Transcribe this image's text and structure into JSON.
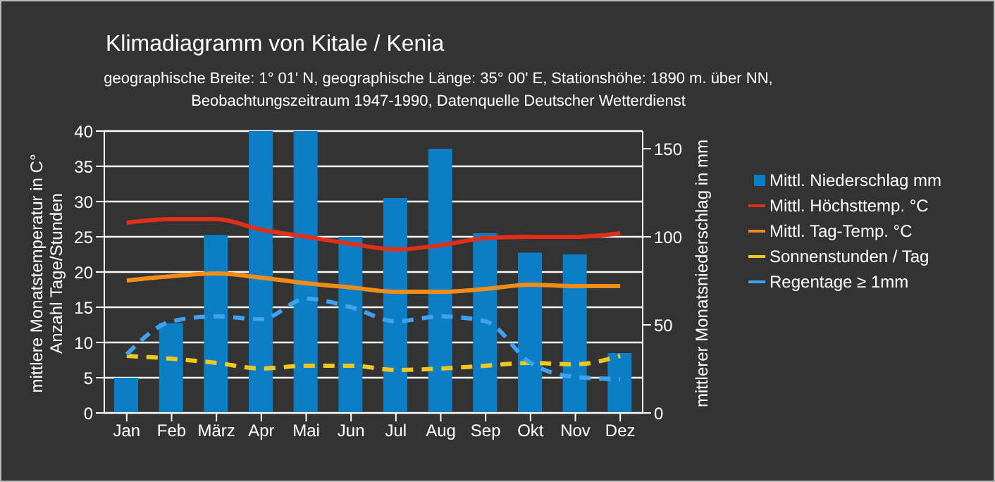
{
  "chart_data": {
    "type": "bar",
    "title": "Klimadiagramm von Kitale / Kenia",
    "subtitle": "geographische Breite: 1° 01' N, geographische Länge: 35° 00' E, Stationshöhe: 1890 m. über NN,\nBeobachtungszeitraum 1947-1990, Datenquelle Deutscher Wetterdienst",
    "ylabel": "mittlere Monatstemperatur in C°\nAnzahl Tage/Stunden",
    "y2label": "mittlerer Monatsniederschlag in mm",
    "categories": [
      "Jan",
      "Feb",
      "März",
      "Apr",
      "Mai",
      "Jun",
      "Jul",
      "Aug",
      "Sep",
      "Okt",
      "Nov",
      "Dez"
    ],
    "series": [
      {
        "name": "Mittl. Niederschlag mm",
        "axis": "y2",
        "color": "#0b7ec6",
        "values": [
          20,
          51,
          101,
          160,
          160,
          100,
          122,
          150,
          102,
          91,
          90,
          34
        ]
      },
      {
        "name": "Mittl. Höchsttemp. °C",
        "type": "line",
        "color": "#e0301a",
        "line_style": "solid",
        "values": [
          27,
          27.5,
          27.5,
          26,
          25,
          24,
          23.2,
          23.8,
          24.8,
          25,
          25,
          25.5
        ]
      },
      {
        "name": "Mittl. Tag-Temp. °C",
        "type": "line",
        "color": "#f08c1a",
        "line_style": "solid",
        "values": [
          18.8,
          19.4,
          19.8,
          19.2,
          18.4,
          17.8,
          17.2,
          17.2,
          17.6,
          18.2,
          18,
          18
        ]
      },
      {
        "name": "Sonnenstunden / Tag",
        "type": "line",
        "color": "#f0c820",
        "line_style": "dashed",
        "values": [
          8.1,
          7.7,
          7.1,
          6.3,
          6.7,
          6.7,
          6.1,
          6.3,
          6.7,
          7.1,
          6.9,
          8.1
        ]
      },
      {
        "name": "Regentage ≥ 1mm",
        "type": "line",
        "color": "#3fa2f0",
        "line_style": "dashed",
        "values": [
          8.3,
          13,
          13.7,
          13.3,
          16.2,
          15,
          13,
          13.7,
          13,
          7.1,
          5.1,
          4.8
        ]
      }
    ],
    "ylim": [
      0,
      40
    ],
    "yticks": [
      0,
      5,
      10,
      15,
      20,
      25,
      30,
      35,
      40
    ],
    "y2lim": [
      0,
      160
    ],
    "y2ticks": [
      0,
      50,
      100,
      150
    ],
    "grid": "y",
    "legend": "right",
    "marker": "none"
  }
}
